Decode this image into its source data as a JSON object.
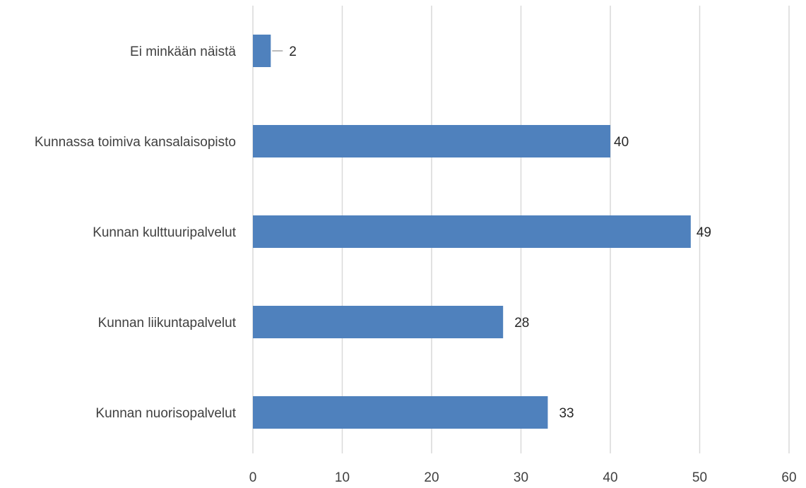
{
  "chart_data": {
    "type": "bar",
    "orientation": "horizontal",
    "categories": [
      "Ei minkään näistä",
      "Kunnassa toimiva kansalaisopisto",
      "Kunnan kulttuuripalvelut",
      "Kunnan liikuntapalvelut",
      "Kunnan nuorisopalvelut"
    ],
    "values": [
      2,
      40,
      49,
      28,
      33
    ],
    "data_labels": [
      "2",
      "40",
      "49",
      "28",
      "33"
    ],
    "xlim": [
      0,
      60
    ],
    "x_ticks": [
      0,
      10,
      20,
      30,
      40,
      50,
      60
    ],
    "x_tick_labels": [
      "0",
      "10",
      "20",
      "30",
      "40",
      "50",
      "60"
    ],
    "grid": "vertical",
    "legend": "none",
    "bar_color": "#4f81bd",
    "gridline_color": "#d9d9d9",
    "title": "",
    "xlabel": "",
    "ylabel": ""
  }
}
